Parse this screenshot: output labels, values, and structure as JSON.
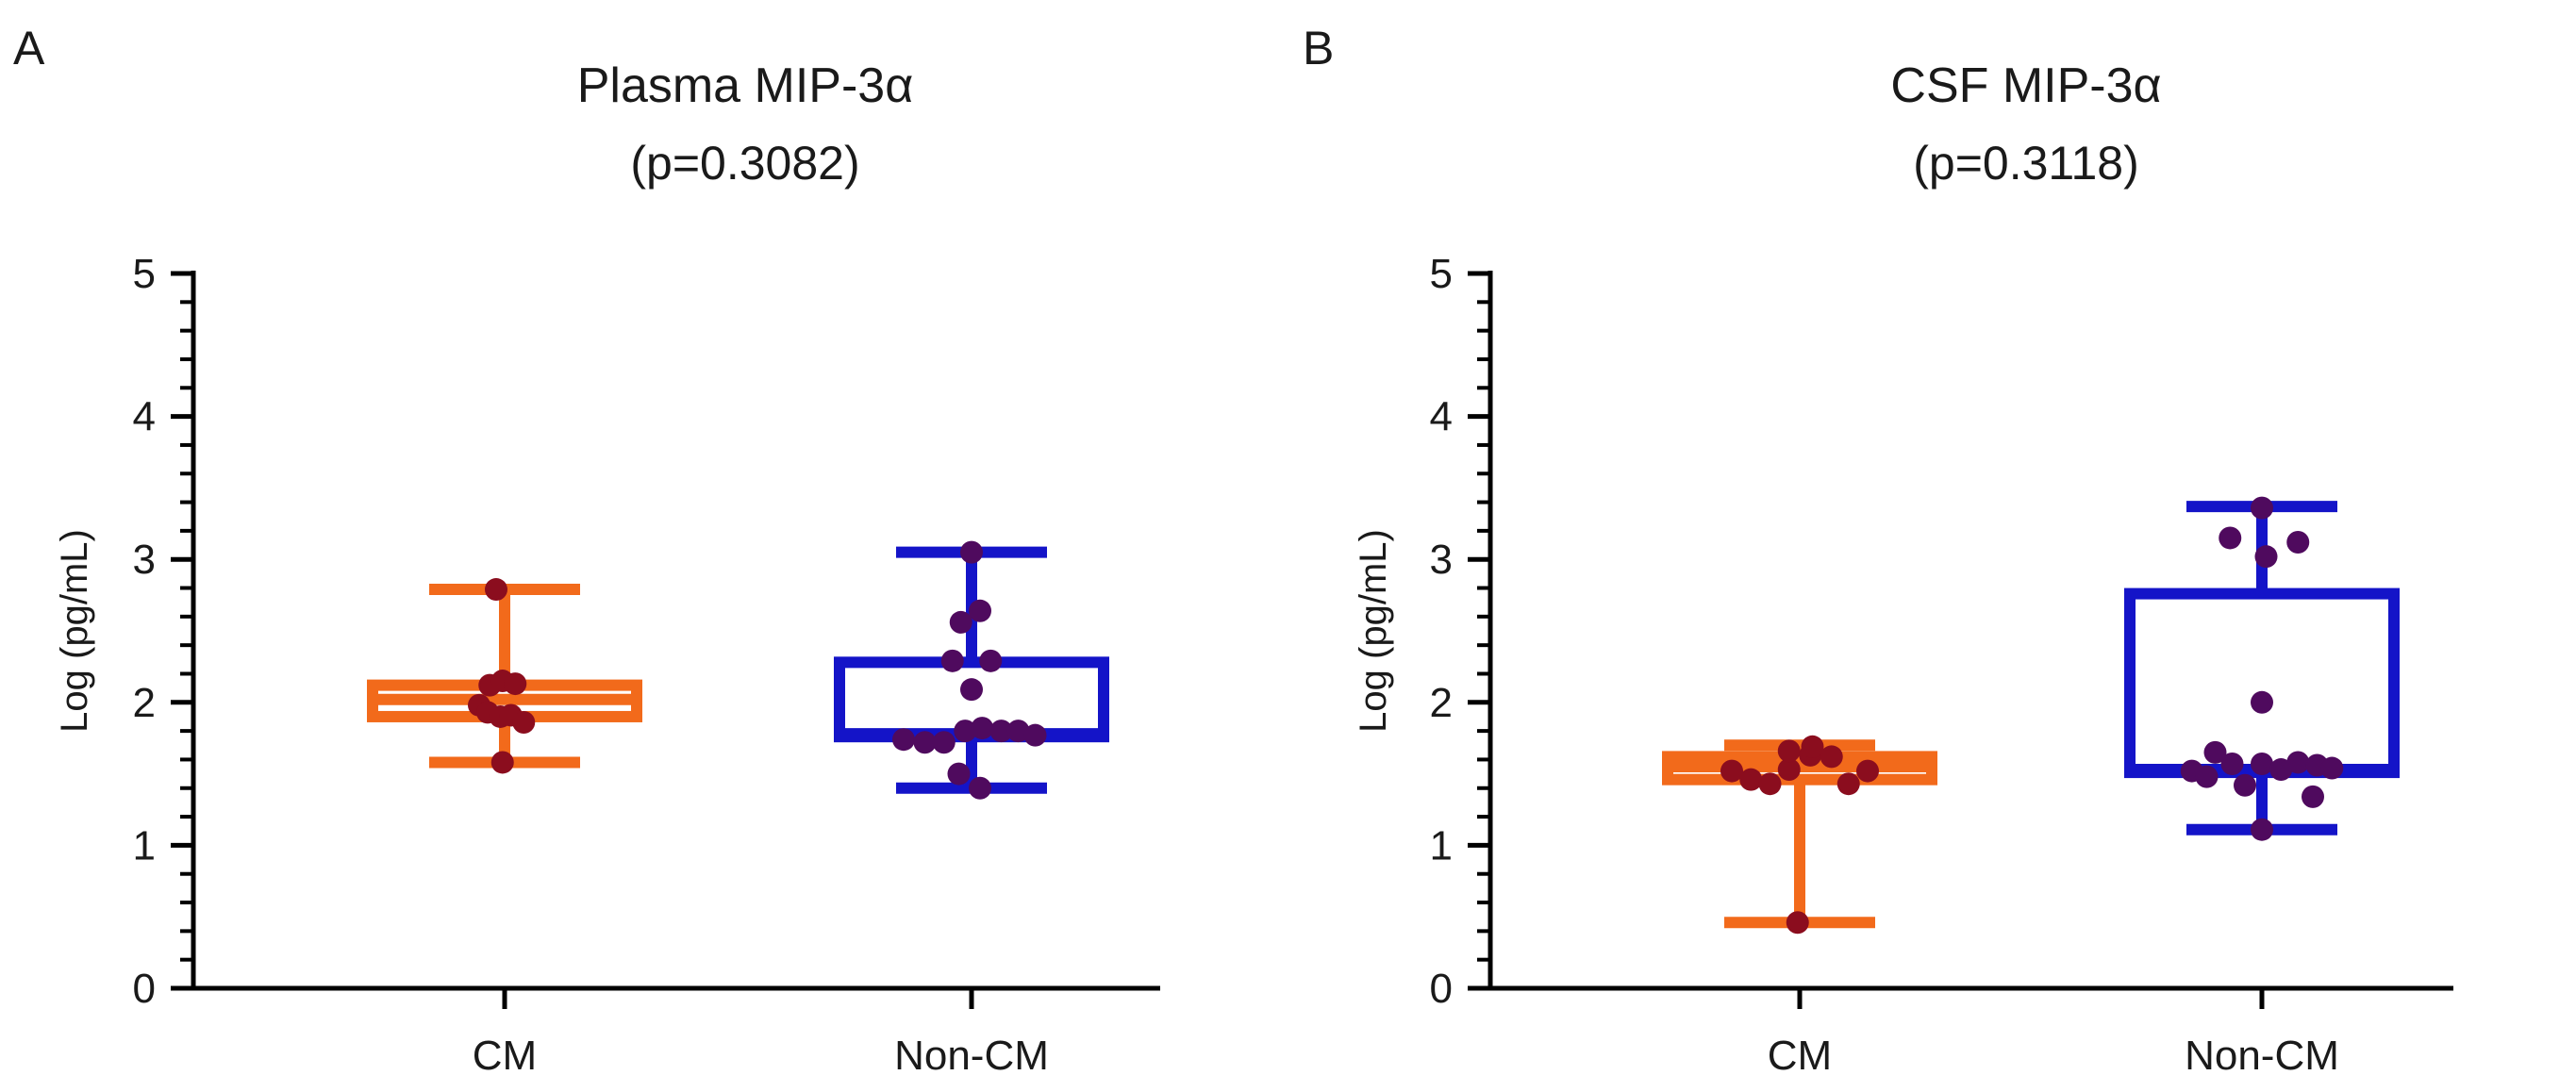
{
  "chart_data": [
    {
      "type": "box",
      "panel_label": "A",
      "title": "Plasma MIP-3α",
      "subtitle": "(p=0.3082)",
      "xlabel": "",
      "ylabel": "Log (pg/mL)",
      "ylim": [
        0,
        5
      ],
      "yticks": [
        "0",
        "1",
        "2",
        "3",
        "4",
        "5"
      ],
      "grid": false,
      "legend": "none",
      "categories": [
        "CM",
        "Non-CM"
      ],
      "series": [
        {
          "box": {
            "min": 1.58,
            "q1": 1.9,
            "median": 2.02,
            "q3": 2.12,
            "max": 2.79
          },
          "color": "#f26a1b",
          "point_color": "#8b0d1e",
          "points": [
            {
              "x": -0.04,
              "y": 2.79
            },
            {
              "x": -0.12,
              "y": 1.98
            },
            {
              "x": -0.07,
              "y": 2.12
            },
            {
              "x": -0.01,
              "y": 2.15
            },
            {
              "x": 0.05,
              "y": 2.13
            },
            {
              "x": -0.08,
              "y": 1.93
            },
            {
              "x": -0.02,
              "y": 1.9
            },
            {
              "x": 0.03,
              "y": 1.91
            },
            {
              "x": 0.09,
              "y": 1.86
            },
            {
              "x": -0.01,
              "y": 1.58
            }
          ]
        },
        {
          "box": {
            "min": 1.4,
            "q1": 1.76,
            "median": 1.78,
            "q3": 2.28,
            "max": 3.05
          },
          "color": "#1414c8",
          "point_color": "#4f0a5e",
          "points": [
            {
              "x": 0.0,
              "y": 3.05
            },
            {
              "x": 0.04,
              "y": 2.64
            },
            {
              "x": -0.05,
              "y": 2.56
            },
            {
              "x": -0.09,
              "y": 2.29
            },
            {
              "x": 0.09,
              "y": 2.29
            },
            {
              "x": 0.0,
              "y": 2.09
            },
            {
              "x": -0.32,
              "y": 1.74
            },
            {
              "x": -0.22,
              "y": 1.72
            },
            {
              "x": -0.13,
              "y": 1.72
            },
            {
              "x": -0.03,
              "y": 1.8
            },
            {
              "x": 0.05,
              "y": 1.82
            },
            {
              "x": 0.14,
              "y": 1.8
            },
            {
              "x": 0.22,
              "y": 1.8
            },
            {
              "x": 0.3,
              "y": 1.77
            },
            {
              "x": -0.06,
              "y": 1.5
            },
            {
              "x": 0.04,
              "y": 1.4
            }
          ]
        }
      ]
    },
    {
      "type": "box",
      "panel_label": "B",
      "title": "CSF MIP-3α",
      "subtitle": "(p=0.3118)",
      "xlabel": "",
      "ylabel": "Log (pg/mL)",
      "ylim": [
        0,
        5
      ],
      "yticks": [
        "0",
        "1",
        "2",
        "3",
        "4",
        "5"
      ],
      "grid": false,
      "legend": "none",
      "categories": [
        "CM",
        "Non-CM"
      ],
      "series": [
        {
          "box": {
            "min": 0.46,
            "q1": 1.46,
            "median": 1.55,
            "q3": 1.62,
            "max": 1.7
          },
          "color": "#f26a1b",
          "point_color": "#8b0d1e",
          "points": [
            {
              "x": -0.32,
              "y": 1.52
            },
            {
              "x": -0.23,
              "y": 1.46
            },
            {
              "x": -0.14,
              "y": 1.43
            },
            {
              "x": -0.05,
              "y": 1.53
            },
            {
              "x": -0.05,
              "y": 1.66
            },
            {
              "x": 0.05,
              "y": 1.63
            },
            {
              "x": 0.06,
              "y": 1.69
            },
            {
              "x": 0.15,
              "y": 1.62
            },
            {
              "x": 0.23,
              "y": 1.43
            },
            {
              "x": 0.32,
              "y": 1.52
            },
            {
              "x": -0.01,
              "y": 0.46
            }
          ]
        },
        {
          "box": {
            "min": 1.11,
            "q1": 1.51,
            "median": 1.53,
            "q3": 2.76,
            "max": 3.37
          },
          "color": "#1414c8",
          "point_color": "#4f0a5e",
          "points": [
            {
              "x": 0.0,
              "y": 3.36
            },
            {
              "x": -0.15,
              "y": 3.15
            },
            {
              "x": 0.17,
              "y": 3.12
            },
            {
              "x": 0.02,
              "y": 3.02
            },
            {
              "x": 0.0,
              "y": 2.0
            },
            {
              "x": -0.22,
              "y": 1.65
            },
            {
              "x": -0.33,
              "y": 1.52
            },
            {
              "x": -0.26,
              "y": 1.48
            },
            {
              "x": -0.14,
              "y": 1.57
            },
            {
              "x": -0.08,
              "y": 1.42
            },
            {
              "x": 0.0,
              "y": 1.57
            },
            {
              "x": 0.09,
              "y": 1.53
            },
            {
              "x": 0.17,
              "y": 1.58
            },
            {
              "x": 0.26,
              "y": 1.56
            },
            {
              "x": 0.33,
              "y": 1.54
            },
            {
              "x": 0.24,
              "y": 1.34
            },
            {
              "x": 0.0,
              "y": 1.11
            }
          ]
        }
      ]
    }
  ]
}
